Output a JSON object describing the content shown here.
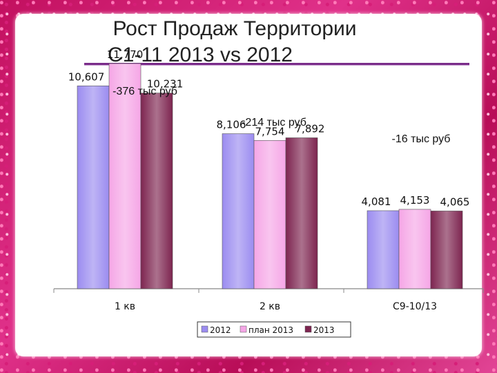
{
  "title": {
    "line1": "Рост Продаж  Территории",
    "line2": "С1-11 2013 vs 2012"
  },
  "chart_data": {
    "type": "bar",
    "categories": [
      "1 кв",
      "2 кв",
      "С9-10/13"
    ],
    "series": [
      {
        "name": "2012",
        "values": [
          10607,
          8106,
          4081
        ],
        "labels": [
          "10,607",
          "8,106",
          "4,081"
        ]
      },
      {
        "name": "план 2013",
        "values": [
          11770,
          7754,
          4153
        ],
        "labels": [
          "11,770",
          "7,754",
          "4,153"
        ]
      },
      {
        "name": "2013",
        "values": [
          10231,
          7892,
          4065
        ],
        "labels": [
          "10,231",
          "7,892",
          "4,065"
        ]
      }
    ],
    "annotations": [
      "-376 тыс руб",
      "-214 тыс руб",
      "-16 тыс руб"
    ],
    "ylim": [
      0,
      13000
    ],
    "grid": false,
    "legend": "bottom",
    "colors": {
      "2012": "#9b8cf0",
      "план 2013": "#f5a6e6",
      "2013": "#7d2550"
    }
  }
}
